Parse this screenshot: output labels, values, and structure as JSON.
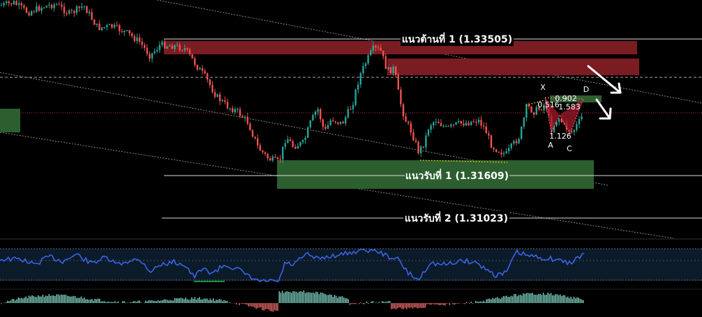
{
  "chart_data": {
    "type": "candlestick",
    "instrument_note": "",
    "price_axis": {
      "min": 1.3045,
      "max": 1.3385
    },
    "candles": [],
    "levels": [
      {
        "kind": "resistance",
        "label": "แนวต้านที่ 1 (1.33505)",
        "price": 1.33505
      },
      {
        "kind": "support",
        "label": "แนวรับที่ 1 (1.31609)",
        "price": 1.31609
      },
      {
        "kind": "support",
        "label": "แนวรับที่ 2 (1.31023)",
        "price": 1.31023
      }
    ],
    "zones": [
      {
        "kind": "supply",
        "price_top": 1.3344,
        "price_bottom": 1.3325
      },
      {
        "kind": "supply",
        "price_top": 1.3312,
        "price_bottom": 1.3289
      },
      {
        "kind": "demand",
        "price_top": 1.3168,
        "price_bottom": 1.3128
      },
      {
        "kind": "demand",
        "price_top": 1.3222,
        "price_bottom": 1.3193
      },
      {
        "kind": "demand",
        "price_top": 1.3271,
        "price_bottom": 1.3262
      }
    ],
    "harmonic_pattern": {
      "points": [
        "X",
        "A",
        "C",
        "D"
      ],
      "ratios": [
        "0.902",
        "0.516",
        "1.583",
        "1.126"
      ]
    },
    "oscillator": {
      "type": "line",
      "color": "#3a63e6"
    },
    "histogram": {
      "up_color": "#7fd3c4",
      "down_color": "#f26c6c"
    },
    "arrows": [
      "down",
      "down"
    ],
    "colors": {
      "bull": "#26a69a",
      "bear": "#ef5350",
      "supply": "#7b1c22",
      "demand": "#2d5e2f"
    }
  }
}
